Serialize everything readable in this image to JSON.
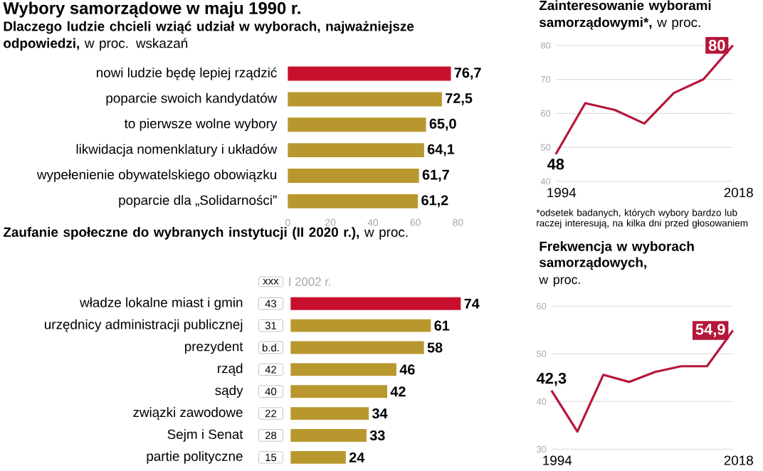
{
  "chart_data": [
    {
      "type": "bar",
      "orientation": "horizontal",
      "title": "Wybory samorządowe w maju 1990 r.",
      "subtitle": "**Dlaczego ludzie chcieli wziąć udział w wyborach, najważniejsze odpowiedzi,** w proc. wskazań",
      "categories": [
        "nowi ludzie będę lepiej rządzić",
        "poparcie swoich kandydatów",
        "to pierwsze wolne wybory",
        "likwidacja nomenklatury i układów",
        "wypełenienie obywatelskiego obowiązku",
        "poparcie dla „Solidarności”"
      ],
      "values": [
        76.7,
        72.5,
        65.0,
        64.1,
        61.7,
        61.2
      ],
      "colors": [
        "#c8102e",
        "#b8982e",
        "#b8982e",
        "#b8982e",
        "#b8982e",
        "#b8982e"
      ],
      "xlim": [
        0,
        80
      ],
      "xticks": [
        0,
        20,
        40,
        60,
        80
      ],
      "value_labels": [
        "76,7",
        "72,5",
        "65,0",
        "64,1",
        "61,7",
        "61,2"
      ]
    },
    {
      "type": "line",
      "title": "**Zainteresowanie wyborami samorządowymi*,** w proc.",
      "categories": [
        "1994",
        null,
        null,
        null,
        null,
        null,
        "2018"
      ],
      "values": [
        48,
        63,
        61,
        57,
        66,
        70,
        80
      ],
      "color": "#b5173a",
      "ylim": [
        40,
        80
      ],
      "yticks": [
        40,
        50,
        60,
        70,
        80
      ],
      "grid": "y",
      "value_labels": [
        "48",
        null,
        null,
        null,
        null,
        null,
        "80"
      ],
      "annotations": [
        "*odsetek badanych, których wybory bardzo lub raczej interesują, na kilka dni przed głosowaniem"
      ]
    },
    {
      "type": "bar",
      "orientation": "horizontal",
      "title": "**Zaufanie społeczne do wybranych instytucji (II 2020 r.),** w proc.",
      "categories": [
        "władze lokalne miast i gmin",
        "urzędnicy administracji publicznej",
        "prezydent",
        "rząd",
        "sądy",
        "związki zawodowe",
        "Sejm i Senat",
        "partie polityczne"
      ],
      "values": [
        74,
        61,
        58,
        46,
        42,
        34,
        33,
        24
      ],
      "colors": [
        "#c8102e",
        "#b8982e",
        "#b8982e",
        "#b8982e",
        "#b8982e",
        "#b8982e",
        "#b8982e",
        "#b8982e"
      ],
      "data_labels": true,
      "annotations": [
        "xxx",
        "I 2002 r.",
        "43",
        "31",
        "b.d.",
        "42",
        "40",
        "22",
        "28",
        "15"
      ]
    },
    {
      "type": "line",
      "title": "Frekwencja w wyborach samorządowych,",
      "subtitle": "w proc.",
      "categories": [
        "1994",
        null,
        null,
        null,
        null,
        null,
        null,
        "2018"
      ],
      "values": [
        42.3,
        33.7,
        45.6,
        44.1,
        46.2,
        47.4,
        47.4,
        54.9
      ],
      "color": "#b5173a",
      "ylim": [
        30,
        60
      ],
      "yticks": [
        30,
        40,
        50,
        60
      ],
      "grid": "y",
      "value_labels": [
        "42,3",
        null,
        null,
        null,
        null,
        null,
        null,
        "54,9"
      ]
    }
  ]
}
